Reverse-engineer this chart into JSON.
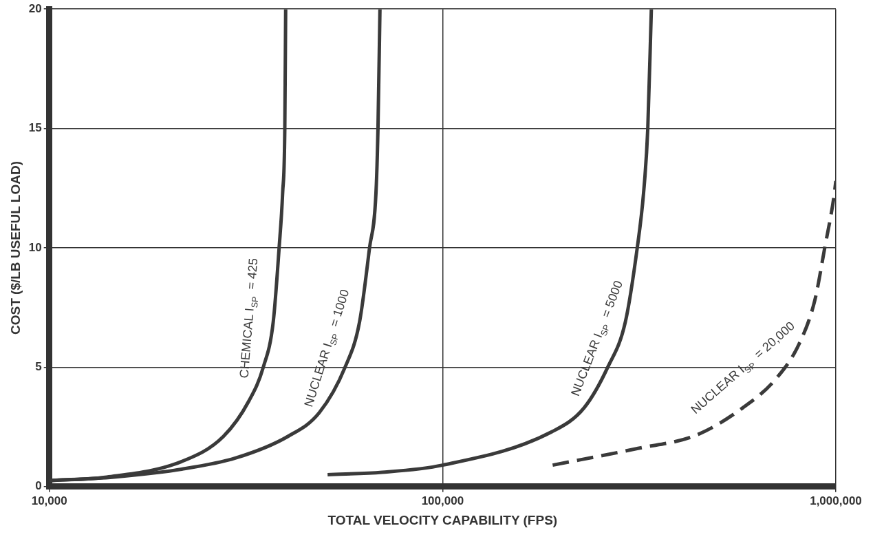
{
  "chart_data": {
    "type": "line",
    "xlabel": "TOTAL VELOCITY CAPABILITY (FPS)",
    "ylabel": "COST ($/LB USEFUL LOAD)",
    "log": "x",
    "grid": true,
    "legend": false,
    "marker": "none",
    "xlim": [
      10000,
      1000000
    ],
    "xticks": [
      {
        "value": 10000,
        "label": "10,000"
      },
      {
        "value": 100000,
        "label": "100,000"
      },
      {
        "value": 1000000,
        "label": "1,000,000"
      }
    ],
    "ylim": [
      0,
      20
    ],
    "yticks": [
      0,
      5,
      10,
      15,
      20
    ],
    "series": [
      {
        "name": "CHEMICAL I$_{SP}$ = 425",
        "color": "#3a3a3a",
        "line_style": "solid",
        "x": [
          10000,
          14000,
          21700,
          27700,
          32200,
          35000,
          37100,
          38400,
          39200,
          39700,
          39900
        ],
        "values": [
          0.25,
          0.4,
          1.05,
          2.1,
          3.6,
          5.0,
          6.9,
          10,
          12.3,
          15,
          20
        ]
      },
      {
        "name": "NUCLEAR I$_{SP}$ = 1000",
        "color": "#3a3a3a",
        "line_style": "solid",
        "x": [
          10000,
          14600,
          21700,
          29800,
          40400,
          48600,
          56500,
          61500,
          65200,
          67700,
          68500,
          69300
        ],
        "values": [
          0.25,
          0.4,
          0.73,
          1.2,
          2.1,
          3.1,
          5.0,
          6.9,
          10,
          12.3,
          15,
          20
        ]
      },
      {
        "name": "NUCLEAR I$_{SP}$ = 5000",
        "color": "#3a3a3a",
        "line_style": "solid",
        "x": [
          51000,
          70200,
          100000,
          189800,
          229000,
          263000,
          291600,
          312600,
          324400,
          332500,
          339500
        ],
        "values": [
          0.5,
          0.6,
          0.9,
          2.3,
          3.3,
          5.0,
          6.9,
          10,
          12.3,
          15,
          20
        ]
      },
      {
        "name": "NUCLEAR I$_{SP}$ = 20,000",
        "color": "#3a3a3a",
        "line_style": "dashed",
        "x": [
          190500,
          314000,
          441000,
          580000,
          703000,
          805000,
          884000,
          937000,
          988000,
          1000000
        ],
        "values": [
          0.9,
          1.6,
          2.15,
          3.3,
          4.5,
          5.95,
          7.8,
          10,
          12.1,
          12.8
        ]
      }
    ]
  }
}
